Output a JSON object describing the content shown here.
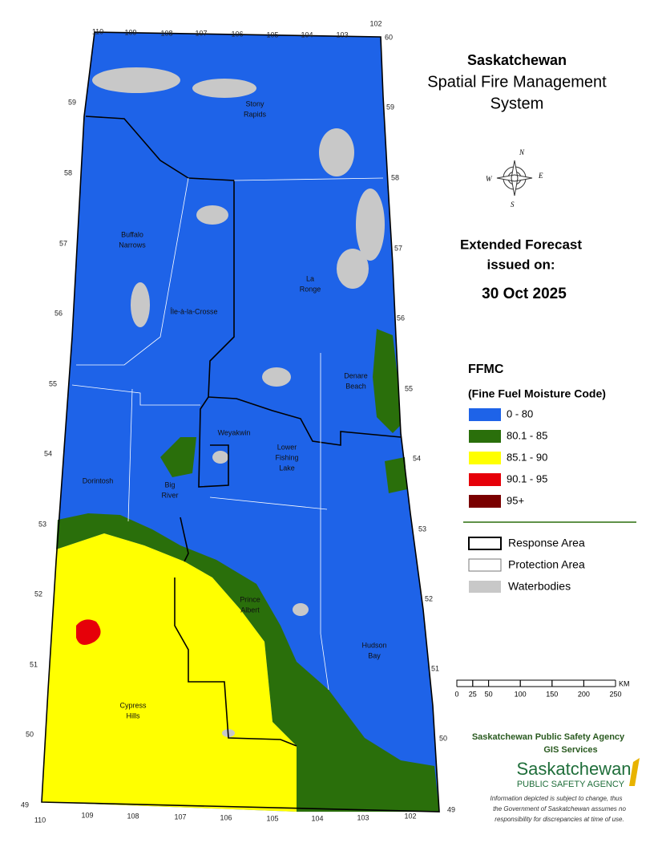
{
  "header": {
    "title": "Saskatchewan",
    "subtitle_lines": [
      "Spatial Fire Management",
      "System"
    ]
  },
  "forecast": {
    "heading_lines": [
      "Extended Forecast",
      "issued on:"
    ],
    "date": "30 Oct 2025"
  },
  "legend": {
    "title": "FFMC",
    "subtitle": "(Fine Fuel Moisture Code)",
    "classes": [
      {
        "label": "0 - 80",
        "color": "#1e63e8"
      },
      {
        "label": "80.1 - 85",
        "color": "#2a6f0b"
      },
      {
        "label": "85.1 - 90",
        "color": "#ffff00"
      },
      {
        "label": "90.1 - 95",
        "color": "#e60009"
      },
      {
        "label": "95+",
        "color": "#7a0000"
      }
    ],
    "boundaries": [
      "Response Area",
      "Protection Area",
      "Waterbodies"
    ]
  },
  "scale_bar": {
    "ticks": [
      0,
      25,
      50,
      100,
      150,
      200,
      250
    ],
    "unit": "KM"
  },
  "compass": [
    "N",
    "E",
    "S",
    "W"
  ],
  "map": {
    "places": [
      [
        "Stony",
        "Rapids"
      ],
      [
        "Buffalo",
        "Narrows"
      ],
      [
        "La",
        "Ronge"
      ],
      [
        "Île-à-la-Crosse"
      ],
      [
        "Denare",
        "Beach"
      ],
      [
        "Weyakwin"
      ],
      [
        "Lower",
        "Fishing",
        "Lake"
      ],
      [
        "Dorintosh"
      ],
      [
        "Big",
        "River"
      ],
      [
        "Prince",
        "Albert"
      ],
      [
        "Hudson",
        "Bay"
      ],
      [
        "Cypress",
        "Hills"
      ]
    ],
    "longitude_top": [
      110,
      109,
      108,
      107,
      106,
      105,
      104,
      103,
      102
    ],
    "longitude_bottom": [
      110,
      109,
      108,
      107,
      106,
      105,
      104,
      103,
      102
    ],
    "latitude_left": [
      59,
      58,
      57,
      56,
      55,
      54,
      53,
      52,
      51,
      50,
      49
    ],
    "latitude_right": [
      60,
      59,
      58,
      57,
      56,
      55,
      54,
      53,
      52,
      51,
      50,
      49
    ]
  },
  "footer": {
    "agency": "Saskatchewan Public Safety Agency",
    "unit": "GIS  Services",
    "logo_name": "Saskatchewan",
    "logo_subname": "PUBLIC SAFETY AGENCY",
    "disclaimer_lines": [
      "Information depicted is subject to change, thus",
      "the Government of Saskatchewan assumes no",
      "responsibility for discrepancies at time of use."
    ]
  }
}
